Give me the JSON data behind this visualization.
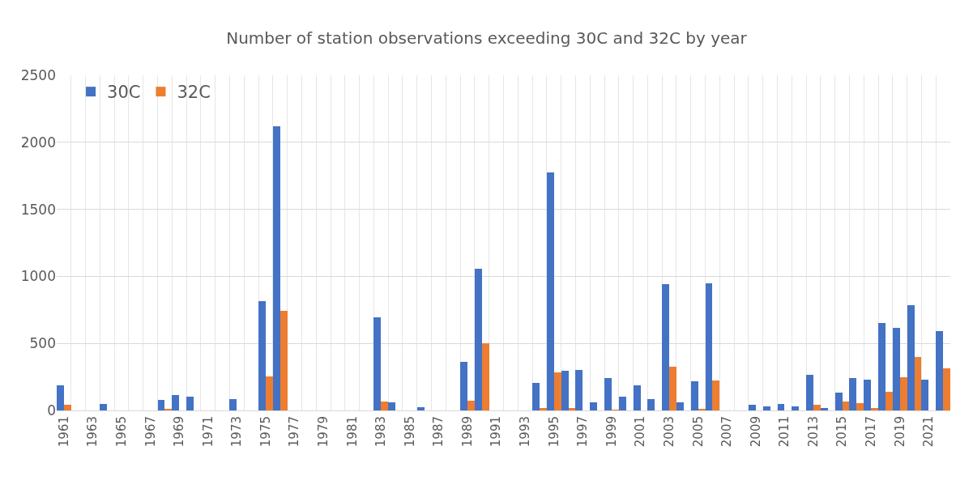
{
  "chart_data": {
    "type": "bar",
    "title": "Number of station observations exceeding 30C and 32C by year",
    "categories": [
      "1961",
      null,
      "1963",
      null,
      "1965",
      null,
      "1967",
      null,
      "1969",
      null,
      "1971",
      null,
      "1973",
      null,
      "1975",
      null,
      "1977",
      null,
      "1979",
      null,
      "1981",
      null,
      "1983",
      null,
      "1985",
      null,
      "1987",
      null,
      "1989",
      null,
      "1991",
      null,
      "1993",
      null,
      "1995",
      null,
      "1997",
      null,
      "1999",
      null,
      "2001",
      null,
      "2003",
      null,
      "2005",
      null,
      "2007",
      null,
      "2009",
      null,
      "2011",
      null,
      "2013",
      null,
      "2015",
      null,
      "2017",
      null,
      "2019",
      null,
      "2021",
      null
    ],
    "series": [
      {
        "name": "30C",
        "color": "#4472c4",
        "values": [
          188,
          0,
          0,
          47,
          0,
          0,
          0,
          79,
          117,
          105,
          0,
          0,
          85,
          0,
          814,
          2120,
          0,
          0,
          0,
          0,
          0,
          0,
          694,
          61,
          0,
          26,
          0,
          0,
          364,
          1059,
          0,
          0,
          0,
          208,
          1775,
          294,
          300,
          61,
          241,
          105,
          188,
          85,
          941,
          61,
          217,
          950,
          0,
          0,
          40,
          32,
          47,
          32,
          267,
          20,
          132,
          241,
          229,
          652,
          617,
          787,
          229,
          591
        ]
      },
      {
        "name": "32C",
        "color": "#ed7d31",
        "values": [
          40,
          0,
          0,
          0,
          0,
          0,
          0,
          10,
          0,
          0,
          0,
          0,
          0,
          0,
          253,
          743,
          0,
          0,
          0,
          0,
          0,
          0,
          67,
          0,
          0,
          0,
          0,
          0,
          71,
          500,
          0,
          0,
          0,
          20,
          281,
          20,
          0,
          0,
          6,
          0,
          0,
          0,
          326,
          0,
          8,
          223,
          0,
          0,
          0,
          0,
          0,
          0,
          40,
          0,
          67,
          55,
          20,
          138,
          247,
          399,
          0,
          314
        ]
      }
    ],
    "ylim": [
      0,
      2500
    ],
    "yticks": [
      0,
      500,
      1000,
      1500,
      2000,
      2500
    ],
    "grid": true,
    "legend": "top left"
  }
}
